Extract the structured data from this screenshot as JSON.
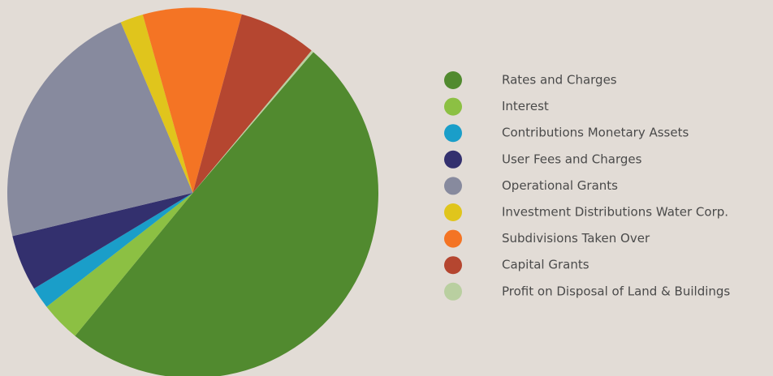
{
  "chart_data": {
    "type": "pie",
    "categories": [
      "Rates and Charges",
      "Interest",
      "Contributions Monetary Assets",
      "User Fees and Charges",
      "Operational Grants",
      "Investment Distributions Water Corp.",
      "Subdivisions Taken Over",
      "Capital Grants",
      "Profit on Disposal of Land & Buildings"
    ],
    "values": [
      49.7,
      3.5,
      1.9,
      4.9,
      22.4,
      2.0,
      8.6,
      6.8,
      0.2
    ],
    "colors": [
      "#518a2f",
      "#8cc043",
      "#1a9ec9",
      "#33306e",
      "#878a9e",
      "#e0c51c",
      "#f47424",
      "#b54630",
      "#b9cfa0"
    ],
    "legend": "right"
  }
}
